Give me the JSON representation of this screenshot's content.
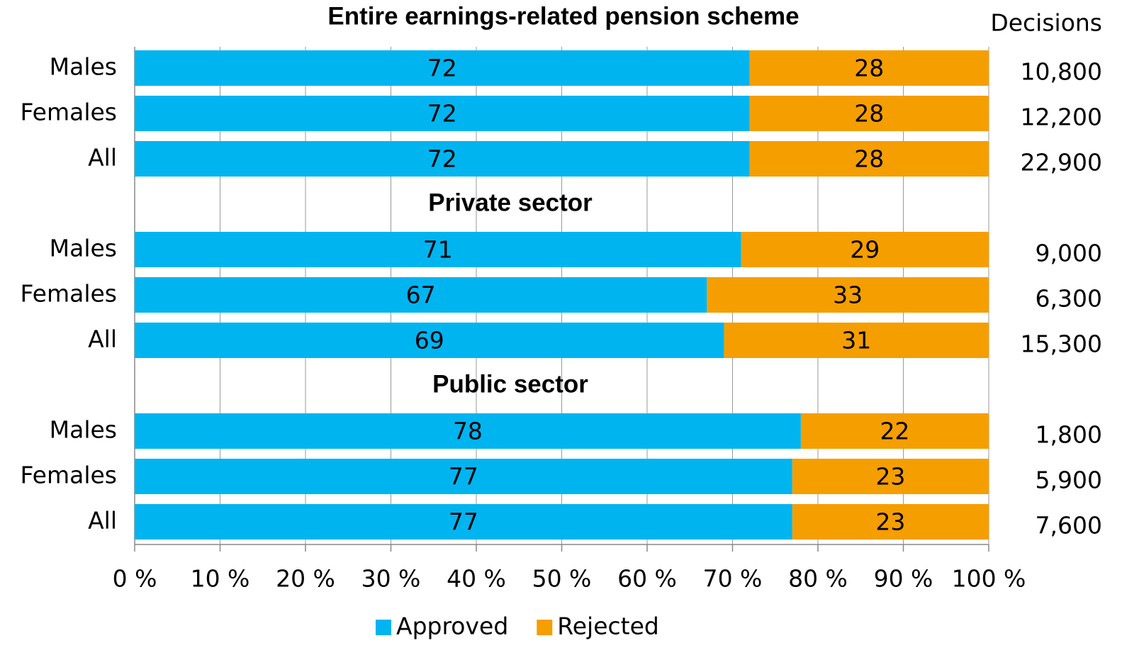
{
  "chart_data": {
    "type": "bar",
    "orientation": "horizontal",
    "stacked": true,
    "groups": [
      {
        "title": "Entire earnings-related pension scheme",
        "categories": [
          "Males",
          "Females",
          "All"
        ]
      },
      {
        "title": "Private sector",
        "categories": [
          "Males",
          "Females",
          "All"
        ]
      },
      {
        "title": "Public sector",
        "categories": [
          "Males",
          "Females",
          "All"
        ]
      }
    ],
    "series": [
      {
        "name": "Approved",
        "color": "#00b4f0",
        "values": [
          72,
          72,
          72,
          71,
          67,
          69,
          78,
          77,
          77
        ]
      },
      {
        "name": "Rejected",
        "color": "#f59e00",
        "values": [
          28,
          28,
          28,
          29,
          33,
          31,
          22,
          23,
          23
        ]
      }
    ],
    "decisions_label": "Decisions",
    "decisions": {
      "values": [
        10800,
        12200,
        22900,
        9000,
        6300,
        15300,
        1800,
        5900,
        7600
      ],
      "value_labels": [
        "10,800",
        "12,200",
        "22,900",
        "9,000",
        "6,300",
        "15,300",
        "1,800",
        "5,900",
        "7,600"
      ]
    },
    "xlim": [
      0,
      100
    ],
    "xticks": [
      {
        "value": 0,
        "label": "0 %"
      },
      {
        "value": 10,
        "label": "10 %"
      },
      {
        "value": 20,
        "label": "20 %"
      },
      {
        "value": 30,
        "label": "30 %"
      },
      {
        "value": 40,
        "label": "40 %"
      },
      {
        "value": 50,
        "label": "50 %"
      },
      {
        "value": 60,
        "label": "60 %"
      },
      {
        "value": 70,
        "label": "70 %"
      },
      {
        "value": 80,
        "label": "80 %"
      },
      {
        "value": 90,
        "label": "90 %"
      },
      {
        "value": 100,
        "label": "100 %"
      }
    ],
    "grid": true,
    "legend": "bottom"
  }
}
